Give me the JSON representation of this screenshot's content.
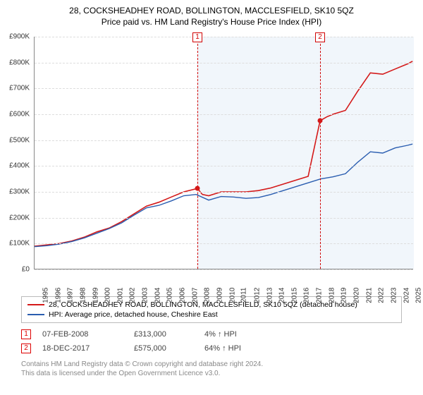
{
  "title": "28, COCKSHEADHEY ROAD, BOLLINGTON, MACCLESFIELD, SK10 5QZ",
  "subtitle": "Price paid vs. HM Land Registry's House Price Index (HPI)",
  "chart": {
    "type": "line",
    "background_color": "#ffffff",
    "grid_color": "#dddddd",
    "shade_color": "#e6eef7",
    "x_years": [
      1995,
      1996,
      1997,
      1998,
      1999,
      2000,
      2001,
      2002,
      2003,
      2004,
      2005,
      2006,
      2007,
      2008,
      2009,
      2010,
      2011,
      2012,
      2013,
      2014,
      2015,
      2016,
      2017,
      2018,
      2019,
      2020,
      2021,
      2022,
      2023,
      2024,
      2025
    ],
    "xlim": [
      1995,
      2025.5
    ],
    "ylim": [
      0,
      900000
    ],
    "ytick_step": 100000,
    "ytick_labels": [
      "£0",
      "£100K",
      "£200K",
      "£300K",
      "£400K",
      "£500K",
      "£600K",
      "£700K",
      "£800K",
      "£900K"
    ],
    "x_label_rotation": -90,
    "x_fontsize": 10,
    "y_fontsize": 10,
    "series": [
      {
        "name": "price_paid",
        "label": "28, COCKSHEADHEY ROAD, BOLLINGTON, MACCLESFIELD, SK10 5QZ (detached house)",
        "color": "#d41919",
        "line_width": 1.6,
        "x": [
          1995,
          1996,
          1997,
          1998,
          1999,
          2000,
          2001,
          2002,
          2003,
          2004,
          2005,
          2006,
          2007,
          2008.1,
          2008.5,
          2009,
          2010,
          2011,
          2012,
          2013,
          2014,
          2015,
          2016,
          2017,
          2017.96,
          2018.5,
          2019,
          2020,
          2021,
          2022,
          2023,
          2024,
          2025,
          2025.4
        ],
        "y": [
          90000,
          95000,
          100000,
          110000,
          125000,
          145000,
          160000,
          185000,
          215000,
          245000,
          260000,
          280000,
          300000,
          313000,
          290000,
          285000,
          300000,
          300000,
          300000,
          305000,
          315000,
          330000,
          345000,
          360000,
          575000,
          590000,
          600000,
          615000,
          690000,
          760000,
          755000,
          775000,
          795000,
          805000
        ]
      },
      {
        "name": "hpi",
        "label": "HPI: Average price, detached house, Cheshire East",
        "color": "#2a5db0",
        "line_width": 1.4,
        "x": [
          1995,
          1996,
          1997,
          1998,
          1999,
          2000,
          2001,
          2002,
          2003,
          2004,
          2005,
          2006,
          2007,
          2008,
          2009,
          2010,
          2011,
          2012,
          2013,
          2014,
          2015,
          2016,
          2017,
          2018,
          2019,
          2020,
          2021,
          2022,
          2023,
          2024,
          2025,
          2025.4
        ],
        "y": [
          88000,
          92000,
          98000,
          108000,
          122000,
          140000,
          158000,
          180000,
          210000,
          238000,
          248000,
          265000,
          285000,
          290000,
          268000,
          282000,
          280000,
          275000,
          278000,
          290000,
          305000,
          320000,
          335000,
          350000,
          358000,
          370000,
          415000,
          455000,
          450000,
          470000,
          480000,
          485000
        ]
      }
    ],
    "markers": [
      {
        "id": "1",
        "x": 2008.1,
        "top_offset": -6
      },
      {
        "id": "2",
        "x": 2017.96,
        "top_offset": -6
      }
    ],
    "marker_border_color": "#d00000",
    "points": [
      {
        "x": 2008.1,
        "y": 313000,
        "color": "#d41919"
      },
      {
        "x": 2017.96,
        "y": 575000,
        "color": "#d41919"
      }
    ],
    "shade_ranges": [
      {
        "from": 2008.1,
        "to": 2017.96
      },
      {
        "from": 2017.96,
        "to": 2025.5
      }
    ]
  },
  "legend": {
    "items": [
      {
        "color": "#d41919",
        "label": "28, COCKSHEADHEY ROAD, BOLLINGTON, MACCLESFIELD, SK10 5QZ (detached house)"
      },
      {
        "color": "#2a5db0",
        "label": "HPI: Average price, detached house, Cheshire East"
      }
    ]
  },
  "transactions": [
    {
      "id": "1",
      "date": "07-FEB-2008",
      "price": "£313,000",
      "hpi": "4% ↑ HPI"
    },
    {
      "id": "2",
      "date": "18-DEC-2017",
      "price": "£575,000",
      "hpi": "64% ↑ HPI"
    }
  ],
  "attribution": {
    "line1": "Contains HM Land Registry data © Crown copyright and database right 2024.",
    "line2": "This data is licensed under the Open Government Licence v3.0."
  }
}
